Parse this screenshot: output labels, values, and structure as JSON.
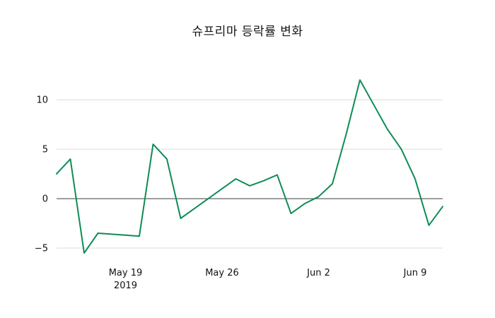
{
  "chart_data": {
    "type": "line",
    "title": "슈프리마 등락률 변화",
    "series_name": "등락률",
    "xlabel": "",
    "ylabel": "",
    "legend": "none",
    "grid": "horizontal",
    "background": "#ffffff",
    "line_color": "#0e8c54",
    "zero_line_color": "#3b3b3b",
    "grid_color": "#dcdcdc",
    "text_color": "#111111",
    "x": [
      "2019-05-14",
      "2019-05-15",
      "2019-05-16",
      "2019-05-17",
      "2019-05-18",
      "2019-05-19",
      "2019-05-20",
      "2019-05-21",
      "2019-05-22",
      "2019-05-23",
      "2019-05-24",
      "2019-05-25",
      "2019-05-26",
      "2019-05-27",
      "2019-05-28",
      "2019-05-29",
      "2019-05-30",
      "2019-05-31",
      "2019-06-01",
      "2019-06-02",
      "2019-06-03",
      "2019-06-04",
      "2019-06-05",
      "2019-06-06",
      "2019-06-07",
      "2019-06-08",
      "2019-06-09",
      "2019-06-10",
      "2019-06-11"
    ],
    "values": [
      2.5,
      4.0,
      -5.5,
      -3.5,
      -3.6,
      -3.7,
      -3.8,
      5.5,
      4.0,
      -2.0,
      -1.0,
      0.0,
      1.0,
      2.0,
      1.3,
      1.8,
      2.4,
      -1.5,
      -0.5,
      0.2,
      1.5,
      6.5,
      12.0,
      9.5,
      7.0,
      5.0,
      2.0,
      -2.7,
      -0.8
    ],
    "x_ticks": [
      {
        "index": 5,
        "label": "May 19",
        "sublabel": "2019"
      },
      {
        "index": 12,
        "label": "May 26",
        "sublabel": ""
      },
      {
        "index": 19,
        "label": "Jun 2",
        "sublabel": ""
      },
      {
        "index": 26,
        "label": "Jun 9",
        "sublabel": ""
      }
    ],
    "y_ticks": [
      {
        "value": 10,
        "label": "10"
      },
      {
        "value": 5,
        "label": "5"
      },
      {
        "value": 0,
        "label": "0"
      },
      {
        "value": -5,
        "label": "−5"
      }
    ],
    "ylim": [
      -6.5,
      13.3
    ]
  }
}
